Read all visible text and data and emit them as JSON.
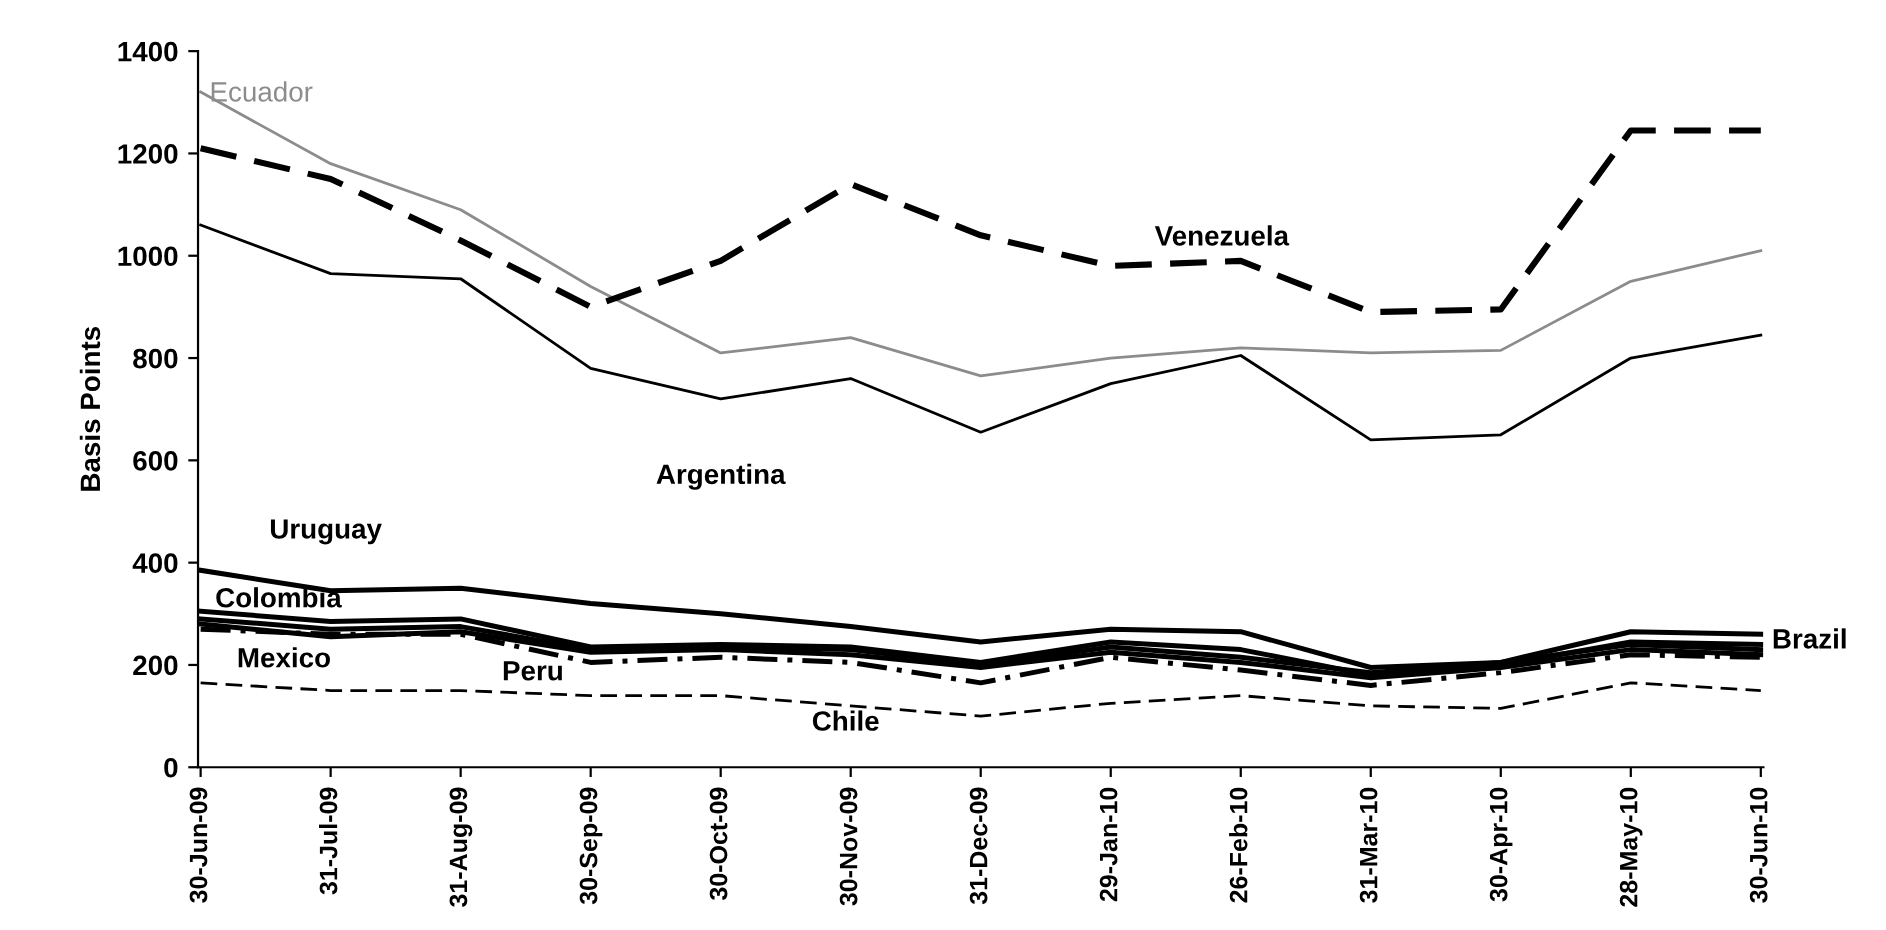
{
  "chart_data": {
    "type": "line",
    "ylabel": "Basis Points",
    "categories": [
      "30-Jun-09",
      "31-Jul-09",
      "31-Aug-09",
      "30-Sep-09",
      "30-Oct-09",
      "30-Nov-09",
      "31-Dec-09",
      "29-Jan-10",
      "26-Feb-10",
      "31-Mar-10",
      "30-Apr-10",
      "28-May-10",
      "30-Jun-10"
    ],
    "series": [
      {
        "name": "Ecuador",
        "color": "#8c8c8c",
        "line_style": "solid",
        "values": [
          1320,
          1180,
          1090,
          940,
          810,
          840,
          765,
          800,
          820,
          810,
          815,
          950,
          1010
        ]
      },
      {
        "name": "Venezuela",
        "color": "#000000",
        "line_style": "dashed",
        "values": [
          1210,
          1150,
          1030,
          900,
          990,
          1140,
          1040,
          980,
          990,
          890,
          895,
          1245,
          1245
        ]
      },
      {
        "name": "Argentina",
        "color": "#000000",
        "line_style": "solid",
        "values": [
          1060,
          965,
          955,
          780,
          720,
          760,
          655,
          750,
          805,
          640,
          650,
          800,
          845
        ]
      },
      {
        "name": "Uruguay",
        "color": "#000000",
        "line_style": "solid",
        "values": [
          385,
          345,
          350,
          320,
          300,
          275,
          245,
          270,
          265,
          195,
          205,
          265,
          260
        ]
      },
      {
        "name": "Colombia",
        "color": "#000000",
        "line_style": "solid",
        "values": [
          305,
          285,
          290,
          235,
          240,
          235,
          205,
          245,
          230,
          180,
          200,
          245,
          240
        ]
      },
      {
        "name": "Brazil",
        "color": "#000000",
        "line_style": "solid",
        "values": [
          290,
          270,
          275,
          230,
          235,
          230,
          200,
          235,
          215,
          185,
          205,
          240,
          230
        ]
      },
      {
        "name": "Mexico",
        "color": "#000000",
        "line_style": "solid",
        "values": [
          280,
          255,
          265,
          225,
          230,
          220,
          195,
          225,
          205,
          175,
          195,
          230,
          220
        ]
      },
      {
        "name": "Peru",
        "color": "#000000",
        "line_style": "dashdot",
        "values": [
          270,
          260,
          260,
          205,
          215,
          205,
          165,
          215,
          190,
          160,
          185,
          220,
          215
        ]
      },
      {
        "name": "Chile",
        "color": "#000000",
        "line_style": "dashed",
        "values": [
          165,
          150,
          150,
          140,
          140,
          120,
          100,
          125,
          140,
          120,
          115,
          165,
          150
        ]
      }
    ],
    "ylim": [
      0,
      1400
    ],
    "yticks": [
      0,
      200,
      400,
      600,
      800,
      1000,
      1200,
      1400
    ],
    "grid": false,
    "legend": false,
    "marker": "none"
  }
}
